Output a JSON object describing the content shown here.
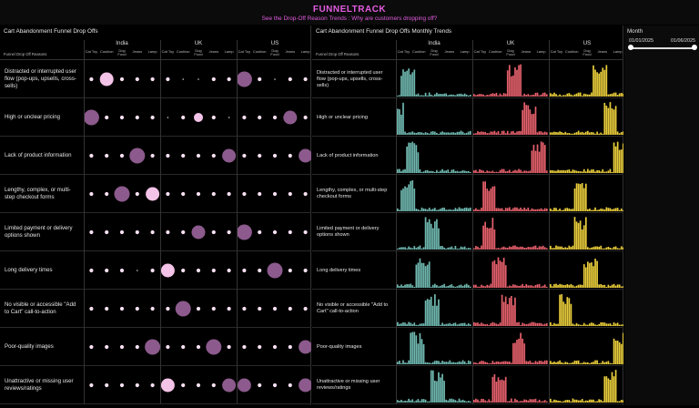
{
  "header": {
    "title": "FUNNELTRACK",
    "subtitle": "See the Drop-Off Reason Trends : Why are customers dropping off?"
  },
  "left_panel": {
    "title": "Cart Abandonment Funnel Drop Offs",
    "reason_header": "Funnel Drop Off Reasons"
  },
  "right_panel": {
    "title": "Cart Abandonment Funnel Drop Offs Monthly Trends",
    "reason_header": "Funnel Drop Off Reasons"
  },
  "countries": [
    "India",
    "UK",
    "US"
  ],
  "products": [
    "Cat Toy",
    "Cushion",
    "Dog Food",
    "Jeans",
    "Lamp"
  ],
  "reasons": [
    "Distracted or interrupted user flow (pop-ups, upsells, cross-sells)",
    "High or unclear pricing",
    "Lack of product information",
    "Lengthy, complex, or multi-step checkout forms",
    "Limited payment or delivery options shown",
    "Long delivery times",
    "No visible or accessible \"Add to Cart\" call-to-action",
    "Poor-quality images",
    "Unattractive or missing user reviews/ratings"
  ],
  "filter": {
    "label": "Month",
    "from": "01/01/2025",
    "to": "01/06/2025"
  },
  "colors": {
    "title": "#e35ce0",
    "bubble_dark": "#8c5a8c",
    "bubble_light": "#f4c3e8",
    "india_bars": "#6fb8b0",
    "uk_bars": "#e5606b",
    "us_bars": "#e9cd3b"
  },
  "bubble_sizes": [
    [
      1,
      3,
      1,
      1,
      1,
      1,
      0,
      0,
      1,
      1,
      4,
      1,
      0,
      1,
      1
    ],
    [
      4,
      1,
      1,
      1,
      1,
      0,
      1,
      2,
      1,
      0,
      1,
      1,
      1,
      3,
      1
    ],
    [
      1,
      1,
      1,
      4,
      1,
      1,
      1,
      1,
      1,
      3,
      1,
      1,
      1,
      1,
      3
    ],
    [
      1,
      1,
      4,
      1,
      3,
      1,
      1,
      1,
      1,
      1,
      1,
      1,
      1,
      1,
      1
    ],
    [
      1,
      1,
      1,
      1,
      1,
      1,
      1,
      3,
      1,
      1,
      4,
      1,
      1,
      1,
      1
    ],
    [
      1,
      1,
      1,
      0,
      1,
      3,
      1,
      1,
      1,
      1,
      1,
      1,
      4,
      1,
      1
    ],
    [
      1,
      1,
      1,
      1,
      1,
      1,
      4,
      1,
      1,
      1,
      1,
      1,
      1,
      1,
      1
    ],
    [
      1,
      1,
      1,
      1,
      4,
      1,
      1,
      1,
      4,
      1,
      1,
      1,
      1,
      1,
      3
    ],
    [
      1,
      1,
      1,
      1,
      1,
      3,
      1,
      1,
      1,
      3,
      3,
      1,
      1,
      1,
      3
    ]
  ],
  "bubble_tone": [
    [
      1,
      1,
      1,
      1,
      1,
      1,
      0,
      0,
      1,
      1,
      0,
      1,
      0,
      1,
      1
    ],
    [
      0,
      1,
      1,
      1,
      1,
      0,
      1,
      0,
      1,
      0,
      1,
      1,
      1,
      0,
      1
    ],
    [
      1,
      1,
      1,
      0,
      1,
      1,
      1,
      1,
      1,
      0,
      1,
      1,
      1,
      1,
      0
    ],
    [
      1,
      1,
      0,
      1,
      1,
      1,
      1,
      1,
      1,
      1,
      1,
      1,
      1,
      1,
      1
    ],
    [
      1,
      1,
      1,
      1,
      1,
      1,
      1,
      0,
      1,
      1,
      0,
      1,
      1,
      1,
      1
    ],
    [
      1,
      1,
      1,
      0,
      1,
      1,
      1,
      1,
      1,
      1,
      1,
      1,
      0,
      1,
      1
    ],
    [
      1,
      1,
      1,
      1,
      1,
      1,
      0,
      1,
      1,
      1,
      1,
      1,
      1,
      1,
      1
    ],
    [
      1,
      1,
      1,
      1,
      0,
      1,
      1,
      1,
      0,
      1,
      1,
      1,
      1,
      1,
      0
    ],
    [
      1,
      1,
      1,
      1,
      1,
      1,
      1,
      1,
      1,
      0,
      0,
      1,
      1,
      1,
      0
    ]
  ],
  "trend_peaks": [
    [
      2,
      8,
      10
    ],
    [
      0,
      11,
      12
    ],
    [
      3,
      13,
      14
    ],
    [
      2,
      3,
      6
    ],
    [
      7,
      3,
      6
    ],
    [
      5,
      5,
      8
    ],
    [
      7,
      7,
      3
    ],
    [
      4,
      9,
      14
    ],
    [
      8,
      5,
      12
    ]
  ]
}
